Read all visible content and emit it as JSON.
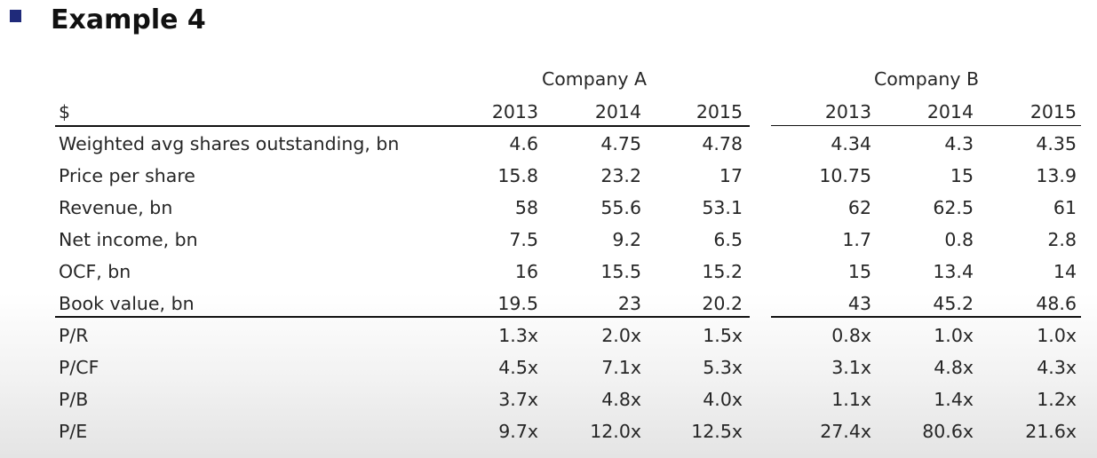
{
  "title": "Example 4",
  "table": {
    "currency_label": "$",
    "groups": [
      {
        "name": "Company A",
        "years": [
          "2013",
          "2014",
          "2015"
        ]
      },
      {
        "name": "Company B",
        "years": [
          "2013",
          "2014",
          "2015"
        ]
      }
    ],
    "rows": [
      {
        "label": "Weighted avg shares outstanding, bn",
        "a": [
          "4.6",
          "4.75",
          "4.78"
        ],
        "b": [
          "4.34",
          "4.3",
          "4.35"
        ]
      },
      {
        "label": "Price per share",
        "a": [
          "15.8",
          "23.2",
          "17"
        ],
        "b": [
          "10.75",
          "15",
          "13.9"
        ]
      },
      {
        "label": "Revenue, bn",
        "a": [
          "58",
          "55.6",
          "53.1"
        ],
        "b": [
          "62",
          "62.5",
          "61"
        ]
      },
      {
        "label": "Net income, bn",
        "a": [
          "7.5",
          "9.2",
          "6.5"
        ],
        "b": [
          "1.7",
          "0.8",
          "2.8"
        ]
      },
      {
        "label": "OCF, bn",
        "a": [
          "16",
          "15.5",
          "15.2"
        ],
        "b": [
          "15",
          "13.4",
          "14"
        ]
      },
      {
        "label": "Book value, bn",
        "a": [
          "19.5",
          "23",
          "20.2"
        ],
        "b": [
          "43",
          "45.2",
          "48.6"
        ]
      },
      {
        "label": "P/R",
        "a": [
          "1.3x",
          "2.0x",
          "1.5x"
        ],
        "b": [
          "0.8x",
          "1.0x",
          "1.0x"
        ]
      },
      {
        "label": "P/CF",
        "a": [
          "4.5x",
          "7.1x",
          "5.3x"
        ],
        "b": [
          "3.1x",
          "4.8x",
          "4.3x"
        ]
      },
      {
        "label": "P/B",
        "a": [
          "3.7x",
          "4.8x",
          "4.0x"
        ],
        "b": [
          "1.1x",
          "1.4x",
          "1.2x"
        ]
      },
      {
        "label": "P/E",
        "a": [
          "9.7x",
          "12.0x",
          "12.5x"
        ],
        "b": [
          "27.4x",
          "80.6x",
          "21.6x"
        ]
      }
    ]
  }
}
